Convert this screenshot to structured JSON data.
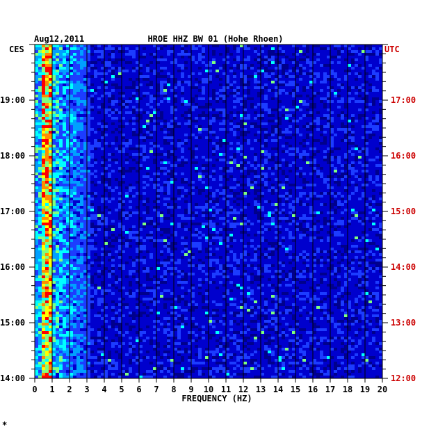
{
  "chart_data": {
    "type": "heatmap",
    "title": "HROE HHZ BW 01 (Hohe Rhoen)",
    "date": "Aug12,2011",
    "xlabel": "FREQUENCY (HZ)",
    "xlim": [
      0,
      20
    ],
    "x_ticks": [
      "0",
      "1",
      "2",
      "3",
      "4",
      "5",
      "6",
      "7",
      "8",
      "9",
      "10",
      "11",
      "12",
      "13",
      "14",
      "15",
      "16",
      "17",
      "18",
      "19",
      "20"
    ],
    "left_axis": {
      "label": "CES",
      "range_hours": [
        14.0,
        20.0
      ],
      "ticks": [
        "14:00",
        "15:00",
        "16:00",
        "17:00",
        "18:00",
        "19:00"
      ]
    },
    "right_axis": {
      "label": "UTC",
      "range_hours": [
        12.0,
        18.0
      ],
      "ticks": [
        "12:00",
        "13:00",
        "14:00",
        "15:00",
        "16:00",
        "17:00"
      ]
    },
    "colorscale": [
      "#00008c",
      "#0000cd",
      "#1c3cff",
      "#00a0ff",
      "#00ffff",
      "#7fff7f",
      "#ffff00",
      "#ff8c00",
      "#ff0000"
    ],
    "footer_mark": "*"
  }
}
